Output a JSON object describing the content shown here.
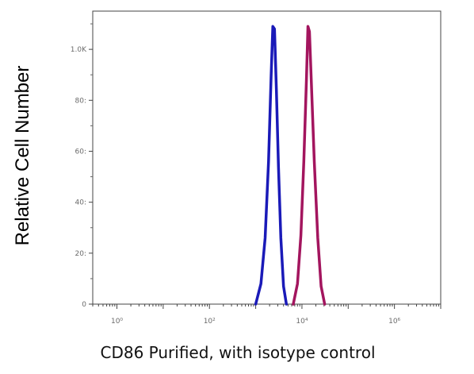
{
  "chart_data": {
    "type": "line",
    "title": "",
    "xlabel": "CD86 Purified, with isotype control",
    "ylabel": "Relative Cell Number",
    "x_scale": "log",
    "xlim": [
      0.3,
      10000000
    ],
    "ylim": [
      0,
      1150
    ],
    "grid": false,
    "legend": "none",
    "y_ticks": [
      {
        "value": 0,
        "label": "0"
      },
      {
        "value": 200,
        "label": "20:"
      },
      {
        "value": 400,
        "label": "40:"
      },
      {
        "value": 600,
        "label": "60:"
      },
      {
        "value": 800,
        "label": "80:"
      },
      {
        "value": 1000,
        "label": "1.0K"
      }
    ],
    "x_ticks": [
      {
        "value": 1,
        "label": "10⁰"
      },
      {
        "value": 100,
        "label": "10²"
      },
      {
        "value": 10000,
        "label": "10⁴"
      },
      {
        "value": 1000000,
        "label": "10⁶"
      }
    ],
    "series": [
      {
        "color": "#1a1ab8",
        "x": [
          1000,
          1300,
          1600,
          1900,
          2150,
          2350,
          2550,
          2800,
          3100,
          3500,
          4000,
          4600
        ],
        "y": [
          0,
          80,
          260,
          560,
          890,
          1090,
          1080,
          840,
          540,
          260,
          70,
          0
        ]
      },
      {
        "color": "#a3155e",
        "x": [
          6500,
          8000,
          9500,
          11000,
          12500,
          13500,
          14500,
          16000,
          18500,
          22000,
          26000,
          31000
        ],
        "y": [
          0,
          80,
          270,
          560,
          880,
          1090,
          1070,
          870,
          560,
          260,
          70,
          0
        ]
      }
    ]
  }
}
